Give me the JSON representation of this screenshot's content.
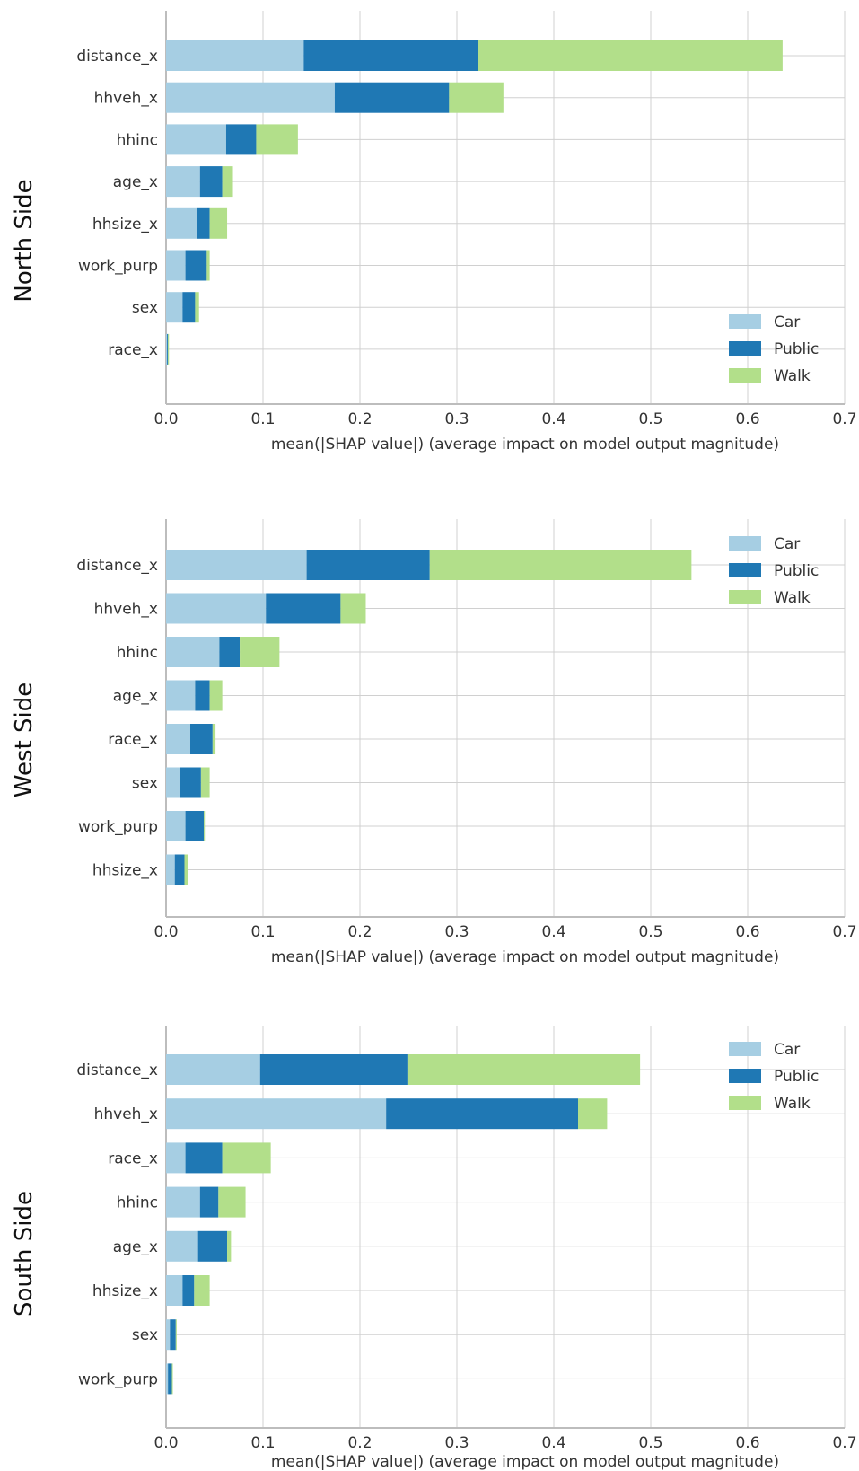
{
  "chart_data": [
    {
      "type": "bar",
      "orientation": "horizontal",
      "stacked": true,
      "title": "",
      "side_label": "North Side",
      "xlabel": "mean(|SHAP value|) (average impact on model output magnitude)",
      "xlim": [
        0,
        0.7
      ],
      "xticks": [
        "0.0",
        "0.1",
        "0.2",
        "0.3",
        "0.4",
        "0.5",
        "0.6",
        "0.7"
      ],
      "grid": true,
      "legend_position": "bottom-right",
      "categories": [
        "distance_x",
        "hhveh_x",
        "hhinc",
        "age_x",
        "hhsize_x",
        "work_purp",
        "sex",
        "race_x"
      ],
      "series": [
        {
          "name": "Car",
          "color": "#a6cee3",
          "values": [
            0.142,
            0.174,
            0.062,
            0.035,
            0.032,
            0.02,
            0.017,
            0.001
          ]
        },
        {
          "name": "Public",
          "color": "#1f78b4",
          "values": [
            0.18,
            0.118,
            0.031,
            0.023,
            0.013,
            0.022,
            0.013,
            0.001
          ]
        },
        {
          "name": "Walk",
          "color": "#b2df8a",
          "values": [
            0.314,
            0.056,
            0.043,
            0.011,
            0.018,
            0.003,
            0.004,
            0.001
          ]
        }
      ]
    },
    {
      "type": "bar",
      "orientation": "horizontal",
      "stacked": true,
      "title": "",
      "side_label": "West Side",
      "xlabel": "mean(|SHAP value|) (average impact on model output magnitude)",
      "xlim": [
        0,
        0.7
      ],
      "xticks": [
        "0.0",
        "0.1",
        "0.2",
        "0.3",
        "0.4",
        "0.5",
        "0.6",
        "0.7"
      ],
      "grid": true,
      "legend_position": "top-right",
      "categories": [
        "distance_x",
        "hhveh_x",
        "hhinc",
        "age_x",
        "race_x",
        "sex",
        "work_purp",
        "hhsize_x"
      ],
      "series": [
        {
          "name": "Car",
          "color": "#a6cee3",
          "values": [
            0.145,
            0.103,
            0.055,
            0.03,
            0.025,
            0.014,
            0.02,
            0.009
          ]
        },
        {
          "name": "Public",
          "color": "#1f78b4",
          "values": [
            0.127,
            0.077,
            0.021,
            0.015,
            0.023,
            0.022,
            0.019,
            0.01
          ]
        },
        {
          "name": "Walk",
          "color": "#b2df8a",
          "values": [
            0.27,
            0.026,
            0.041,
            0.013,
            0.003,
            0.009,
            0.001,
            0.004
          ]
        }
      ]
    },
    {
      "type": "bar",
      "orientation": "horizontal",
      "stacked": true,
      "title": "",
      "side_label": "South Side",
      "xlabel": "mean(|SHAP value|) (average impact on model output magnitude)",
      "xlim": [
        0,
        0.7
      ],
      "xticks": [
        "0.0",
        "0.1",
        "0.2",
        "0.3",
        "0.4",
        "0.5",
        "0.6",
        "0.7"
      ],
      "grid": true,
      "legend_position": "top-right",
      "categories": [
        "distance_x",
        "hhveh_x",
        "race_x",
        "hhinc",
        "age_x",
        "hhsize_x",
        "sex",
        "work_purp"
      ],
      "series": [
        {
          "name": "Car",
          "color": "#a6cee3",
          "values": [
            0.097,
            0.227,
            0.02,
            0.035,
            0.033,
            0.017,
            0.004,
            0.002
          ]
        },
        {
          "name": "Public",
          "color": "#1f78b4",
          "values": [
            0.152,
            0.198,
            0.038,
            0.019,
            0.03,
            0.012,
            0.006,
            0.004
          ]
        },
        {
          "name": "Walk",
          "color": "#b2df8a",
          "values": [
            0.24,
            0.03,
            0.05,
            0.028,
            0.004,
            0.016,
            0.001,
            0.001
          ]
        }
      ]
    }
  ]
}
